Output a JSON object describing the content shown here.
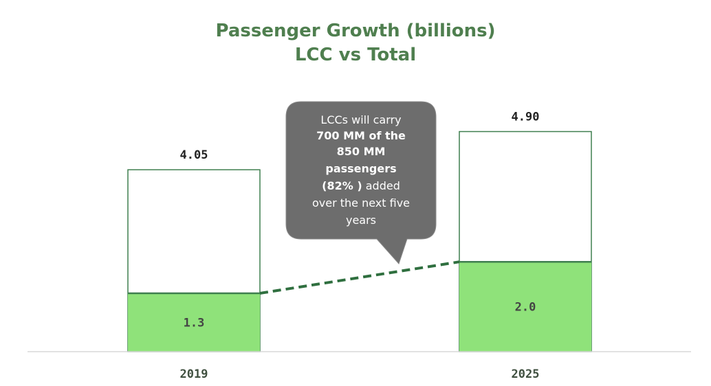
{
  "chart_data": {
    "type": "bar",
    "title": [
      "Passenger Growth (billions)",
      "LCC vs Total"
    ],
    "categories": [
      "2019",
      "2025"
    ],
    "series": [
      {
        "name": "LCC",
        "values": [
          1.3,
          2.0
        ],
        "labels": [
          "1.3",
          "2.0"
        ]
      },
      {
        "name": "Total",
        "values": [
          4.05,
          4.9
        ],
        "labels": [
          "4.05",
          "4.90"
        ]
      }
    ],
    "ylim": [
      0,
      5.5
    ],
    "grid": false,
    "colors": {
      "lcc_fill": "#8fe27a",
      "bar_border": "#3f7f4f",
      "title": "#4f7f4f",
      "callout": "#6d6d6d",
      "axis": "#d9d9d9"
    },
    "connector": {
      "style": "dashed",
      "from_series": "LCC"
    },
    "annotation": {
      "lines": [
        [
          {
            "text": "LCCs will carry",
            "bold": false
          }
        ],
        [
          {
            "text": "700 MM of the",
            "bold": true
          }
        ],
        [
          {
            "text": "850 MM",
            "bold": true
          }
        ],
        [
          {
            "text": "passengers",
            "bold": true
          }
        ],
        [
          {
            "text": "(82% )",
            "bold": true
          },
          {
            "text": " added",
            "bold": false
          }
        ],
        [
          {
            "text": "over the next five",
            "bold": false
          }
        ],
        [
          {
            "text": "years",
            "bold": false
          }
        ]
      ]
    }
  }
}
